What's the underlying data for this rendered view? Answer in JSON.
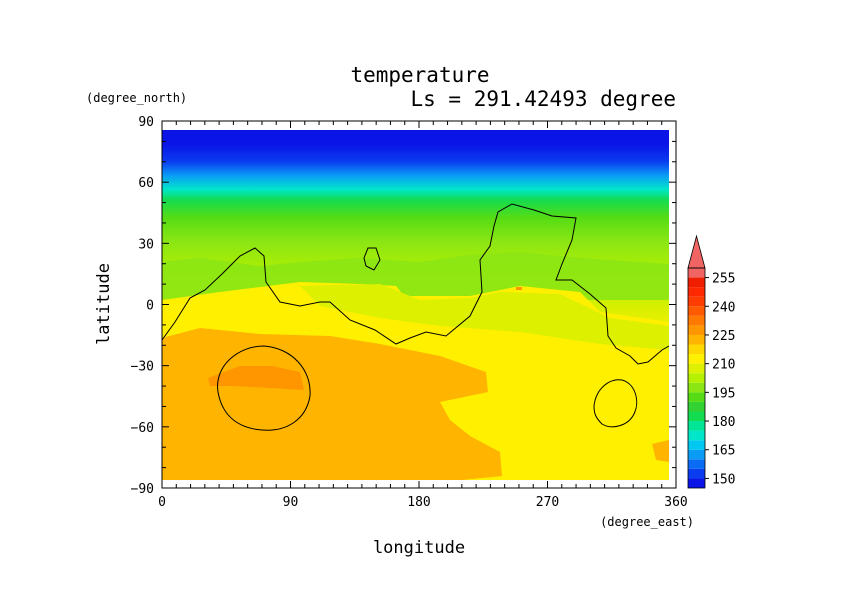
{
  "chart_data": {
    "type": "heatmap",
    "title": "temperature",
    "subtitle": "Ls = 291.42493 degree",
    "xlabel": "longitude",
    "ylabel": "latitude",
    "xunit": "(degree_east)",
    "yunit": "(degree_north)",
    "xlim": [
      0,
      360
    ],
    "ylim": [
      -90,
      90
    ],
    "x_ticks": [
      "0",
      "90",
      "180",
      "270",
      "360"
    ],
    "y_ticks": [
      "90",
      "60",
      "30",
      "0",
      "−30",
      "−60",
      "−90"
    ],
    "colorbar": {
      "ticks": [
        "255",
        "240",
        "225",
        "210",
        "195",
        "180",
        "165",
        "150"
      ],
      "levels": [
        145,
        150,
        155,
        160,
        165,
        170,
        175,
        180,
        185,
        190,
        195,
        200,
        205,
        210,
        215,
        220,
        225,
        230,
        235,
        240,
        245,
        250,
        255,
        260
      ],
      "colors": [
        "#0a14e6",
        "#0a3cf0",
        "#0a6cf5",
        "#0a9cf5",
        "#00c8f0",
        "#00e6c8",
        "#00e696",
        "#14dc50",
        "#32d232",
        "#55dc14",
        "#8ce614",
        "#b4f000",
        "#dcf000",
        "#fff000",
        "#ffd800",
        "#ffb400",
        "#ff9600",
        "#ff7800",
        "#ff5a00",
        "#ff3c00",
        "#ff2800",
        "#f01e00",
        "#f06464"
      ],
      "extend": "max"
    },
    "zonal_temperature": [
      {
        "lat": 85,
        "value": 147
      },
      {
        "lat": 75,
        "value": 155
      },
      {
        "lat": 65,
        "value": 170
      },
      {
        "lat": 55,
        "value": 185
      },
      {
        "lat": 45,
        "value": 197
      },
      {
        "lat": 35,
        "value": 206
      },
      {
        "lat": 25,
        "value": 213
      },
      {
        "lat": 15,
        "value": 218
      },
      {
        "lat": 5,
        "value": 221
      },
      {
        "lat": -5,
        "value": 223
      },
      {
        "lat": -15,
        "value": 224
      },
      {
        "lat": -25,
        "value": 226
      },
      {
        "lat": -35,
        "value": 229
      },
      {
        "lat": -45,
        "value": 229
      },
      {
        "lat": -55,
        "value": 228
      },
      {
        "lat": -65,
        "value": 228
      },
      {
        "lat": -75,
        "value": 228
      },
      {
        "lat": -85,
        "value": 228
      }
    ],
    "contour": "black line (topography outline)"
  }
}
